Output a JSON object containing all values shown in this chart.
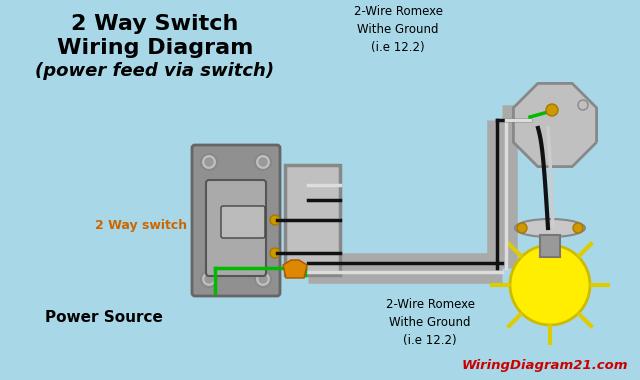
{
  "bg": "#a8d8e8",
  "title1": "2 Way Switch",
  "title2": "Wiring Diagram",
  "title3": "(power feed via switch)",
  "title_color": "#000000",
  "label_2way": "2 Way switch",
  "label_2way_color": "#cc6600",
  "label_power": "Power Source",
  "label_top": "2-Wire Romexe\nWithe Ground\n(i.e 12.2)",
  "label_bot": "2-Wire Romexe\nWithe Ground\n(i.e 12.2)",
  "watermark": "WiringDiagram21.com",
  "wm_color": "#cc0000",
  "conduit": "#aaaaaa",
  "black": "#111111",
  "green": "#00bb00",
  "white": "#dddddd",
  "orange": "#dd8800",
  "yellow_bulb": "#ffee00",
  "sw_body": "#808080",
  "box_fill": "#b0b0b0",
  "box_edge": "#888888",
  "screw_color": "#cccccc",
  "brass": "#cc9900"
}
